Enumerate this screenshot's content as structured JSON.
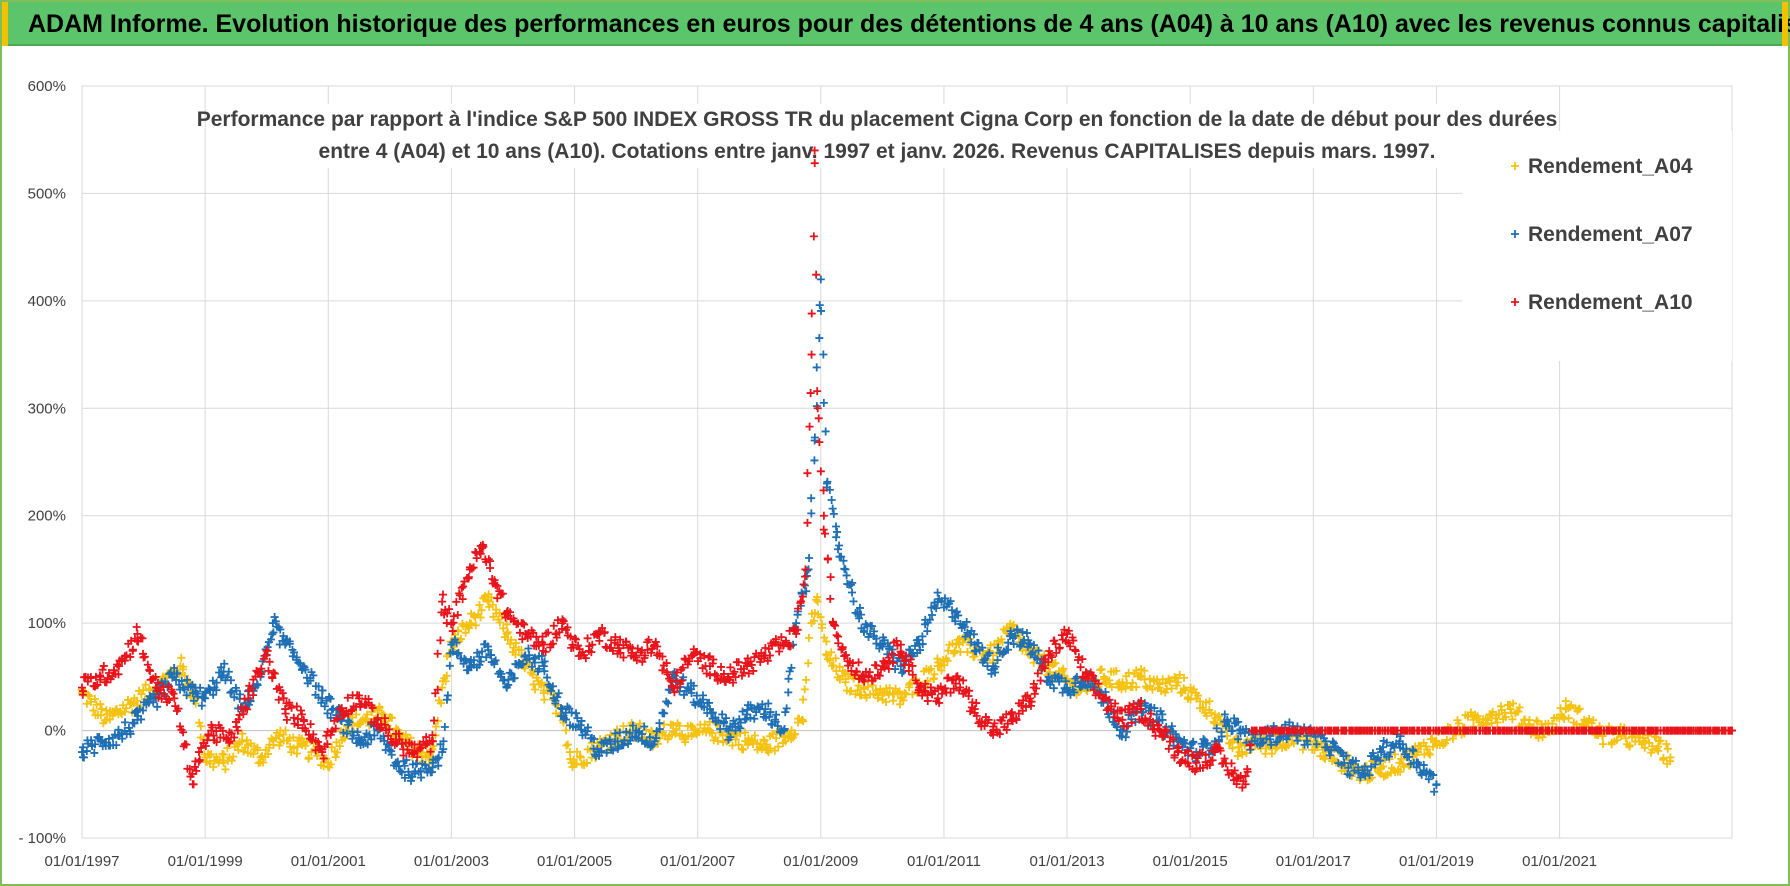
{
  "banner": {
    "title": "ADAM Informe. Evolution historique des performances en euros pour des détentions de 4 ans (A04) à 10 ans (A10) avec les revenus connus capitalisés"
  },
  "chart_data": {
    "type": "scatter",
    "title": [
      "Performance par rapport à l'indice S&P 500 INDEX GROSS TR  du placement Cigna Corp en fonction de la date de début pour des durées",
      "entre 4 (A04) et 10 ans (A10). Cotations entre janv. 1997 et janv. 2026. Revenus CAPITALISES depuis mars. 1997."
    ],
    "xlabel": "",
    "ylabel": "",
    "x_range": [
      1997.0,
      2023.8
    ],
    "ylim": [
      -100,
      600
    ],
    "y_ticks": [
      {
        "value": 600,
        "label": "600%"
      },
      {
        "value": 500,
        "label": "500%"
      },
      {
        "value": 400,
        "label": "400%"
      },
      {
        "value": 300,
        "label": "300%"
      },
      {
        "value": 200,
        "label": "200%"
      },
      {
        "value": 100,
        "label": "100%"
      },
      {
        "value": 0,
        "label": "0%"
      },
      {
        "value": -100,
        "label": "- 100%"
      }
    ],
    "x_ticks": [
      {
        "value": 1997,
        "label": "01/01/1997"
      },
      {
        "value": 1999,
        "label": "01/01/1999"
      },
      {
        "value": 2001,
        "label": "01/01/2001"
      },
      {
        "value": 2003,
        "label": "01/01/2003"
      },
      {
        "value": 2005,
        "label": "01/01/2005"
      },
      {
        "value": 2007,
        "label": "01/01/2007"
      },
      {
        "value": 2009,
        "label": "01/01/2009"
      },
      {
        "value": 2011,
        "label": "01/01/2011"
      },
      {
        "value": 2013,
        "label": "01/01/2013"
      },
      {
        "value": 2015,
        "label": "01/01/2015"
      },
      {
        "value": 2017,
        "label": "01/01/2017"
      },
      {
        "value": 2019,
        "label": "01/01/2019"
      },
      {
        "value": 2021,
        "label": "01/01/2021"
      }
    ],
    "legend_position": "top-right",
    "series": [
      {
        "name": "Rendement_A04",
        "color": "#f5c211",
        "x": [
          1997.0,
          1997.4,
          1997.8,
          1998.2,
          1998.6,
          1998.85,
          1999.0,
          1999.3,
          1999.6,
          1999.9,
          2000.2,
          2000.5,
          2000.8,
          2001.0,
          2001.3,
          2001.6,
          2001.9,
          2002.2,
          2002.5,
          2002.7,
          2002.85,
          2003.0,
          2003.3,
          2003.6,
          2003.9,
          2004.2,
          2004.5,
          2004.8,
          2004.95,
          2005.1,
          2005.4,
          2005.7,
          2006.0,
          2006.3,
          2006.6,
          2006.9,
          2007.2,
          2007.5,
          2007.8,
          2008.1,
          2008.4,
          2008.7,
          2008.85,
          2008.95,
          2009.1,
          2009.4,
          2009.7,
          2010.0,
          2010.3,
          2010.6,
          2010.9,
          2011.2,
          2011.5,
          2011.8,
          2012.1,
          2012.4,
          2012.7,
          2013.0,
          2013.3,
          2013.6,
          2013.9,
          2014.2,
          2014.5,
          2014.8,
          2015.1,
          2015.4,
          2015.6,
          2015.8,
          2016.0,
          2016.3,
          2016.6,
          2016.9,
          2017.2,
          2017.5,
          2017.8,
          2018.1,
          2018.4,
          2018.7,
          2019.0,
          2019.3,
          2019.6,
          2019.9,
          2020.2,
          2020.5,
          2020.8,
          2021.1,
          2021.4,
          2021.7,
          2022.0,
          2022.3,
          2022.6,
          2022.8
        ],
        "y": [
          35,
          10,
          25,
          40,
          60,
          30,
          -25,
          -30,
          -10,
          -25,
          -5,
          -15,
          -20,
          -30,
          5,
          10,
          15,
          -10,
          -20,
          -25,
          40,
          80,
          100,
          120,
          90,
          60,
          35,
          20,
          -30,
          -25,
          -15,
          -5,
          0,
          -10,
          5,
          -5,
          0,
          -5,
          -10,
          -15,
          -5,
          10,
          100,
          120,
          70,
          45,
          40,
          35,
          30,
          45,
          60,
          80,
          75,
          70,
          95,
          70,
          60,
          45,
          40,
          50,
          45,
          50,
          40,
          45,
          30,
          15,
          -5,
          -20,
          -10,
          -15,
          -5,
          -10,
          -20,
          -30,
          -40,
          -35,
          -30,
          -20,
          -10,
          0,
          10,
          15,
          20,
          5,
          0,
          20,
          10,
          -5,
          -5,
          -10,
          -15,
          -25
        ]
      },
      {
        "name": "Rendement_A07",
        "color": "#1f6fb4",
        "x": [
          1997.0,
          1997.3,
          1997.6,
          1997.9,
          1998.2,
          1998.5,
          1998.8,
          1999.0,
          1999.3,
          1999.6,
          1999.9,
          2000.1,
          2000.3,
          2000.6,
          2000.9,
          2001.2,
          2001.5,
          2001.8,
          2002.1,
          2002.4,
          2002.7,
          2002.85,
          2003.0,
          2003.3,
          2003.6,
          2003.9,
          2004.2,
          2004.5,
          2004.8,
          2005.1,
          2005.4,
          2005.7,
          2006.0,
          2006.3,
          2006.6,
          2006.9,
          2007.2,
          2007.5,
          2007.8,
          2008.1,
          2008.4,
          2008.6,
          2008.8,
          2008.9,
          2009.0,
          2009.1,
          2009.25,
          2009.4,
          2009.6,
          2009.8,
          2010.0,
          2010.3,
          2010.6,
          2010.9,
          2011.2,
          2011.5,
          2011.8,
          2012.1,
          2012.4,
          2012.7,
          2013.0,
          2013.3,
          2013.6,
          2013.9,
          2014.2,
          2014.5,
          2014.8,
          2015.1,
          2015.4,
          2015.6,
          2015.8,
          2016.0,
          2016.3,
          2016.6,
          2016.9,
          2017.2,
          2017.5,
          2017.8,
          2018.1,
          2018.4,
          2018.7,
          2019.0
        ],
        "y": [
          -20,
          -10,
          -5,
          10,
          30,
          50,
          35,
          30,
          55,
          20,
          50,
          100,
          80,
          60,
          30,
          10,
          -10,
          0,
          -30,
          -40,
          -30,
          -20,
          80,
          60,
          75,
          40,
          70,
          60,
          20,
          5,
          -20,
          -10,
          0,
          -10,
          50,
          35,
          20,
          0,
          15,
          20,
          0,
          100,
          150,
          270,
          420,
          230,
          180,
          150,
          110,
          90,
          80,
          60,
          80,
          120,
          110,
          80,
          60,
          90,
          80,
          50,
          40,
          50,
          30,
          0,
          20,
          10,
          -10,
          -20,
          -10,
          10,
          0,
          -10,
          -5,
          0,
          -5,
          -10,
          -30,
          -40,
          -20,
          -10,
          -30,
          -50
        ]
      },
      {
        "name": "Rendement_A10",
        "color": "#e8141b",
        "x": [
          1997.0,
          1997.3,
          1997.6,
          1997.9,
          1998.2,
          1998.5,
          1998.8,
          1998.9,
          1999.1,
          1999.4,
          1999.7,
          2000.0,
          2000.3,
          2000.6,
          2000.9,
          2001.2,
          2001.5,
          2001.8,
          2002.1,
          2002.4,
          2002.7,
          2002.85,
          2003.0,
          2003.3,
          2003.5,
          2003.7,
          2003.9,
          2004.2,
          2004.5,
          2004.8,
          2005.1,
          2005.4,
          2005.7,
          2006.0,
          2006.3,
          2006.6,
          2006.9,
          2007.2,
          2007.5,
          2007.8,
          2008.1,
          2008.4,
          2008.6,
          2008.75,
          2008.85,
          2008.9,
          2008.95,
          2009.05,
          2009.2,
          2009.4,
          2009.7,
          2010.0,
          2010.3,
          2010.6,
          2010.9,
          2011.2,
          2011.5,
          2011.8,
          2012.1,
          2012.4,
          2012.7,
          2013.0,
          2013.3,
          2013.6,
          2013.9,
          2014.2,
          2014.5,
          2014.8,
          2015.1,
          2015.4,
          2015.7,
          2015.9,
          2016.0,
          2016.2,
          2016.5,
          2016.8,
          2017.1,
          2017.4,
          2017.7,
          2018.0,
          2018.3,
          2018.6,
          2018.9,
          2019.2,
          2019.5,
          2019.8,
          2020.1,
          2020.4,
          2020.7,
          2021.0,
          2021.3,
          2021.6,
          2021.9,
          2022.2,
          2022.5,
          2022.8,
          2023.1,
          2023.4,
          2023.8
        ],
        "y": [
          40,
          50,
          60,
          90,
          40,
          30,
          -50,
          -20,
          0,
          -10,
          30,
          70,
          20,
          10,
          -20,
          20,
          30,
          10,
          -10,
          -20,
          -10,
          120,
          100,
          150,
          170,
          140,
          110,
          90,
          80,
          100,
          70,
          90,
          80,
          70,
          80,
          40,
          70,
          60,
          50,
          60,
          70,
          80,
          90,
          150,
          350,
          540,
          300,
          200,
          100,
          70,
          50,
          60,
          80,
          40,
          30,
          50,
          20,
          0,
          10,
          30,
          70,
          90,
          50,
          30,
          10,
          20,
          0,
          -20,
          -30,
          -20,
          -40,
          -50,
          0,
          0,
          0,
          0,
          0,
          0,
          0,
          0,
          0,
          0,
          0,
          0,
          0,
          0,
          0,
          0,
          0,
          0,
          0,
          0,
          0,
          0,
          0,
          0,
          0,
          0,
          0
        ]
      }
    ]
  }
}
